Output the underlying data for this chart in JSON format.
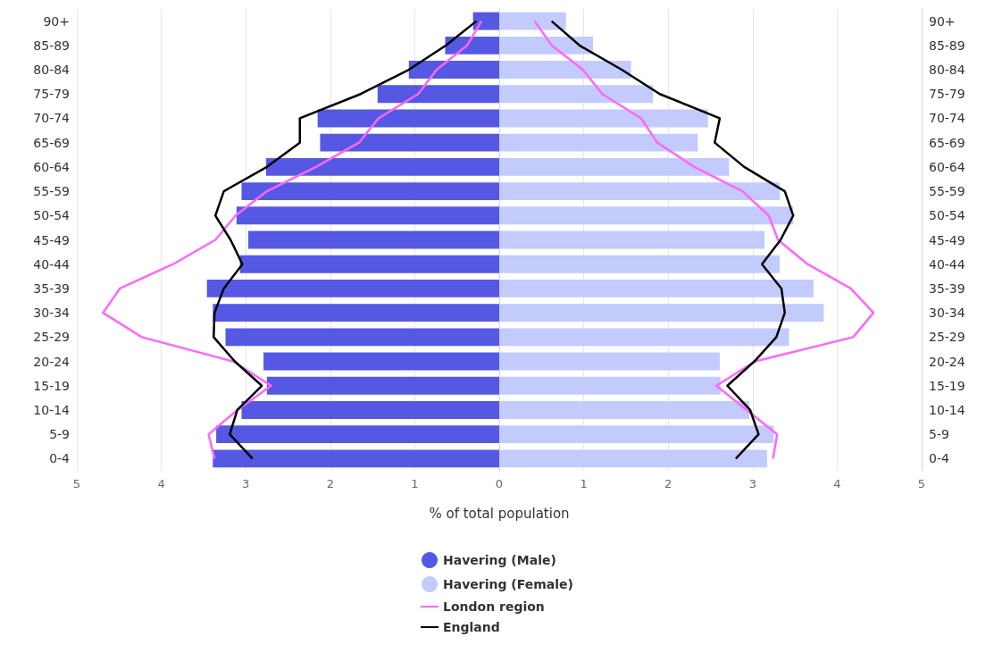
{
  "chart_data": {
    "type": "bar",
    "orientation": "horizontal",
    "stacked": true,
    "xlabel": "% of total population",
    "categories": [
      "90+",
      "85-89",
      "80-84",
      "75-79",
      "70-74",
      "65-69",
      "60-64",
      "55-59",
      "50-54",
      "45-49",
      "40-44",
      "35-39",
      "30-34",
      "25-29",
      "20-24",
      "15-19",
      "10-14",
      "5-9",
      "0-4"
    ],
    "series": [
      {
        "name": "Havering (Male)",
        "color": "#5558e3",
        "values": [
          -0.31,
          -0.64,
          -1.07,
          -1.44,
          -2.15,
          -2.12,
          -2.76,
          -3.05,
          -3.11,
          -2.97,
          -3.07,
          -3.46,
          -3.39,
          -3.24,
          -2.79,
          -2.75,
          -3.05,
          -3.35,
          -3.39
        ]
      },
      {
        "name": "Havering (Female)",
        "color": "#c3cbfc",
        "values": [
          0.79,
          1.11,
          1.56,
          1.82,
          2.47,
          2.35,
          2.72,
          3.32,
          3.48,
          3.14,
          3.32,
          3.72,
          3.84,
          3.43,
          2.61,
          2.62,
          2.96,
          3.25,
          3.17
        ]
      },
      {
        "name": "London region",
        "type": "line",
        "color": "#ff66ff",
        "values": [
          -0.21,
          -0.38,
          -0.74,
          -0.96,
          -1.43,
          -1.66,
          -2.17,
          -2.75,
          -3.12,
          -3.36,
          -3.86,
          -4.49,
          -4.69,
          -4.23,
          -3.15,
          -2.7,
          -3.1,
          -3.44,
          -3.37
        ]
      },
      {
        "type": "line",
        "color": "#ff66ff",
        "values": [
          0.42,
          0.62,
          0.99,
          1.22,
          1.68,
          1.87,
          2.31,
          2.88,
          3.19,
          3.3,
          3.65,
          4.16,
          4.43,
          4.19,
          3.03,
          2.57,
          2.93,
          3.29,
          3.24
        ]
      },
      {
        "name": "England",
        "type": "line",
        "color": "#000000",
        "values": [
          -0.27,
          -0.63,
          -1.07,
          -1.64,
          -2.36,
          -2.36,
          -2.75,
          -3.26,
          -3.36,
          -3.18,
          -3.04,
          -3.26,
          -3.37,
          -3.38,
          -3.13,
          -2.81,
          -3.1,
          -3.19,
          -2.92
        ]
      },
      {
        "type": "line",
        "color": "#000000",
        "values": [
          0.62,
          0.95,
          1.45,
          1.9,
          2.61,
          2.55,
          2.9,
          3.38,
          3.48,
          3.33,
          3.11,
          3.34,
          3.38,
          3.28,
          3.02,
          2.7,
          2.97,
          3.07,
          2.8
        ]
      }
    ],
    "xlim": [
      -5,
      5
    ],
    "xticks": [
      {
        "value": -5,
        "label": "5"
      },
      {
        "value": -4,
        "label": "4"
      },
      {
        "value": -3,
        "label": "3"
      },
      {
        "value": -2,
        "label": "2"
      },
      {
        "value": -1,
        "label": "1"
      },
      0,
      1,
      2,
      3,
      4,
      5
    ],
    "grid": "x",
    "legend": "bottom"
  }
}
